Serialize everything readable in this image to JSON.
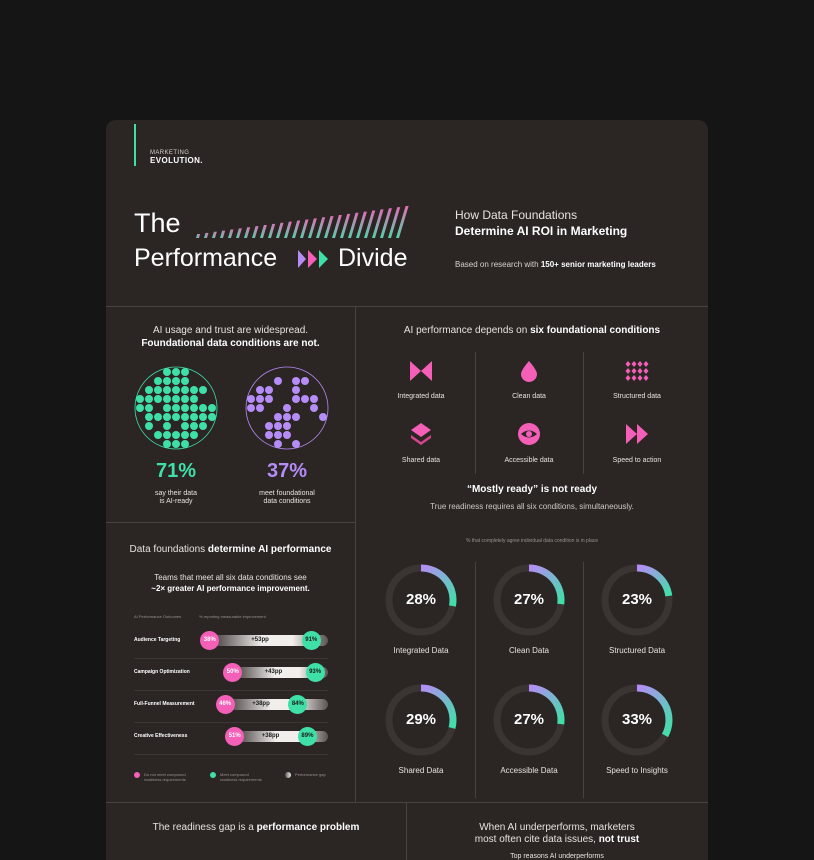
{
  "brand": {
    "line1": "MARKETING",
    "line2": "EVOLUTION."
  },
  "hero": {
    "the": "The",
    "performance": "Performance",
    "divide": "Divide",
    "subtitle_light": "How Data Foundations",
    "subtitle_bold": "Determine AI ROI in Marketing",
    "research_prefix": "Based on research with ",
    "research_bold": "150+ senior marketing leaders"
  },
  "usage": {
    "title_light": "AI usage and trust are widespread.",
    "title_bold": "Foundational data conditions are not.",
    "stat1": {
      "value": "71%",
      "line1": "say their data",
      "line2": "is AI-ready",
      "color": "#3fe0a8"
    },
    "stat2": {
      "value": "37%",
      "line1": "meet foundational",
      "line2": "data conditions",
      "color": "#b68cf7"
    }
  },
  "conditions": {
    "title_light": "AI performance depends on ",
    "title_bold": "six foundational conditions",
    "items": [
      {
        "label": "Integrated data",
        "icon": "bowtie-icon"
      },
      {
        "label": "Clean data",
        "icon": "drop-icon"
      },
      {
        "label": "Structured data",
        "icon": "diamond-grid-icon"
      },
      {
        "label": "Shared data",
        "icon": "layers-icon"
      },
      {
        "label": "Accessible data",
        "icon": "eye-icon"
      },
      {
        "label": "Speed to action",
        "icon": "fast-forward-icon"
      }
    ]
  },
  "readiness": {
    "title": "“Mostly ready” is not ready",
    "subtitle": "True readiness requires all six conditions, simultaneously.",
    "caption": "% that completely agree individual data condition is in place",
    "gauges": [
      {
        "value": "28%",
        "pct": 28,
        "label": "Integrated Data"
      },
      {
        "value": "27%",
        "pct": 27,
        "label": "Clean Data"
      },
      {
        "value": "23%",
        "pct": 23,
        "label": "Structured Data"
      },
      {
        "value": "29%",
        "pct": 29,
        "label": "Shared Data"
      },
      {
        "value": "27%",
        "pct": 27,
        "label": "Accessible Data"
      },
      {
        "value": "33%",
        "pct": 33,
        "label": "Speed to Insights"
      }
    ]
  },
  "performance": {
    "title_light": "Data foundations ",
    "title_bold": "determine AI performance",
    "sub_line1": "Teams that meet all six data conditions see",
    "sub_line2": "~2× greater AI performance improvement.",
    "col1": "AI Performance Outcomes",
    "col2": "% reporting measurable improvement",
    "rows": [
      {
        "label": "Audience Targeting",
        "low": "38%",
        "gain": "+53pp",
        "high": "91%",
        "low_v": 38,
        "high_v": 91
      },
      {
        "label": "Campaign Optimization",
        "low": "50%",
        "gain": "+43pp",
        "high": "93%",
        "low_v": 50,
        "high_v": 93
      },
      {
        "label": "Full-Funnel Measurement",
        "low": "46%",
        "gain": "+38pp",
        "high": "84%",
        "low_v": 46,
        "high_v": 84
      },
      {
        "label": "Creative Effectiveness",
        "low": "51%",
        "gain": "+38pp",
        "high": "89%",
        "low_v": 51,
        "high_v": 89
      }
    ],
    "legend": {
      "not_meet_1": "Do not meet compound",
      "not_meet_2": "readiness requirements",
      "meet_1": "Meet compound",
      "meet_2": "readiness requirements",
      "gap": "Performance gap"
    }
  },
  "bottom": {
    "left_light": "The readiness gap is a ",
    "left_bold": "performance problem",
    "right_line1": "When AI underperforms, marketers",
    "right_line2_light": "most often cite data issues, ",
    "right_line2_bold": "not trust",
    "right_line3": "Top reasons AI underperforms"
  },
  "colors": {
    "green": "#3fe0a8",
    "purple": "#b68cf7",
    "pink": "#f45fb7",
    "background": "#2b2524"
  }
}
